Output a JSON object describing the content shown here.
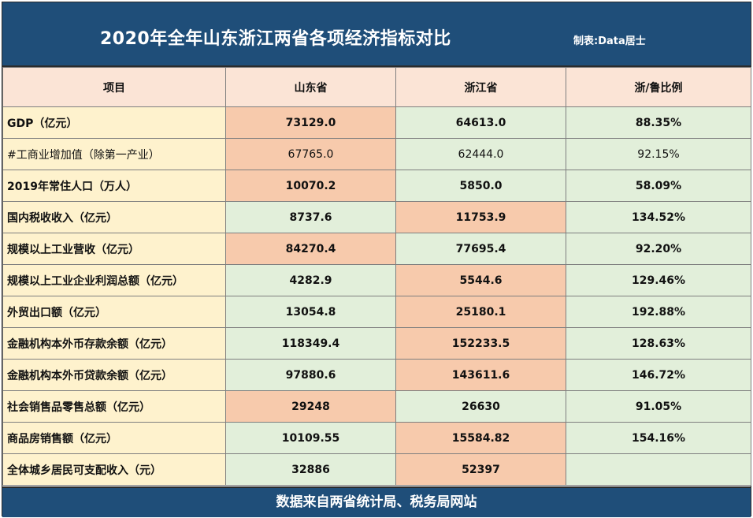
{
  "title": "2020年全年山东浙江两省各项经济指标对比",
  "credit": "制表:Data居士",
  "headers": [
    "项目",
    "山东省",
    "浙江省",
    "浙/鲁比例"
  ],
  "rows": [
    {
      "name": "GDP（亿元）",
      "sd": "73129.0",
      "zj": "64613.0",
      "ratio": "88.35%"
    },
    {
      "name": "#工商业增加值（除第一产业）",
      "sd": "67765.0",
      "zj": "62444.0",
      "ratio": "92.15%"
    },
    {
      "name": "2019年常住人口（万人）",
      "sd": "10070.2",
      "zj": "5850.0",
      "ratio": "58.09%"
    },
    {
      "name": "国内税收收入（亿元）",
      "sd": "8737.6",
      "zj": "11753.9",
      "ratio": "134.52%"
    },
    {
      "name": "规模以上工业营收（亿元）",
      "sd": "84270.4",
      "zj": "77695.4",
      "ratio": "92.20%"
    },
    {
      "name": "规模以上工业企业利润总额（亿元）",
      "sd": "4282.9",
      "zj": "5544.6",
      "ratio": "129.46%"
    },
    {
      "name": "外贸出口额（亿元）",
      "sd": "13054.8",
      "zj": "25180.1",
      "ratio": "192.88%"
    },
    {
      "name": "金融机构本外币存款余额（亿元）",
      "sd": "118349.4",
      "zj": "152233.5",
      "ratio": "128.63%"
    },
    {
      "name": "金融机构本外币贷款余额（亿元）",
      "sd": "97880.6",
      "zj": "143611.6",
      "ratio": "146.72%"
    },
    {
      "name": "社会销售品零售总额（亿元）",
      "sd": "29248",
      "zj": "26630",
      "ratio": "91.05%"
    },
    {
      "name": "商品房销售额（亿元）",
      "sd": "10109.55",
      "zj": "15584.82",
      "ratio": "154.16%"
    },
    {
      "name": "全体城乡居民可支配收入（元）",
      "sd": "32886",
      "zj": "52397",
      "ratio": ""
    }
  ],
  "footer": "数据来自两省统计局、税务局网站",
  "colors": {
    "banner": "#1f4e79",
    "header_bg": "#fbe4d6",
    "name_bg": "#fef2cd",
    "higher_bg": "#f7caac",
    "lower_bg": "#e2efda"
  }
}
